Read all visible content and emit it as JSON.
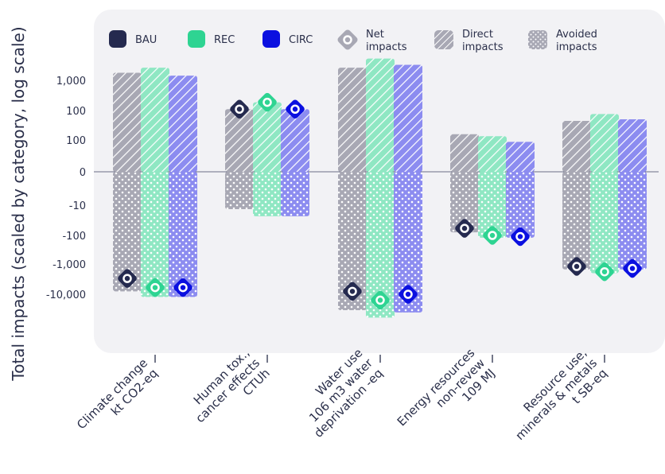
{
  "chart_data": {
    "type": "bar",
    "ylabel": "Total impacts (scaled by category, log scale)",
    "y_scale": "log (scaled by category)",
    "y_ticks": [
      "1,000",
      "100",
      "100",
      "0",
      "-10",
      "-100",
      "-1,000",
      "-10,000"
    ],
    "legend": {
      "series": [
        {
          "name": "BAU",
          "color": "#252a4f"
        },
        {
          "name": "REC",
          "color": "#2ed492"
        },
        {
          "name": "CIRC",
          "color": "#0b10e0"
        }
      ],
      "markers": [
        {
          "name": "Net impacts",
          "lines": [
            "Net",
            "impacts"
          ],
          "icon": "diamond-ring-icon"
        },
        {
          "name": "Direct impacts",
          "lines": [
            "Direct",
            "impacts"
          ],
          "icon": "diagonal-hatch-icon"
        },
        {
          "name": "Avoided impacts",
          "lines": [
            "Avoided",
            "impacts"
          ],
          "icon": "dot-pattern-icon"
        }
      ],
      "placement": "top"
    },
    "categories": [
      {
        "lines": [
          "Climate change",
          "kt CO2-eq"
        ],
        "sub_line": 1
      },
      {
        "lines": [
          "Human tox.,",
          "cancer effects",
          "CTUh"
        ]
      },
      {
        "lines": [
          "Water use",
          "106 m3 water",
          "deprivation -eq"
        ],
        "sup_line": 1
      },
      {
        "lines": [
          "Energy resources",
          "non-revew",
          "109 MJ"
        ],
        "sup_line": 2
      },
      {
        "lines": [
          "Resource use,",
          "minerals & metals",
          "t SB-eq"
        ]
      }
    ],
    "series": [
      {
        "name": "BAU",
        "direct": [
          1800,
          200,
          2500,
          30,
          100
        ],
        "avoided": [
          -8000,
          -15,
          -30000,
          -80,
          -1500
        ],
        "net": [
          -3000,
          200,
          -8000,
          -60,
          -1200
        ]
      },
      {
        "name": "REC",
        "direct": [
          2500,
          300,
          4500,
          25,
          150
        ],
        "avoided": [
          -12000,
          -25,
          -50000,
          -120,
          -2000
        ],
        "net": [
          -6000,
          300,
          -15000,
          -100,
          -1800
        ]
      },
      {
        "name": "CIRC",
        "direct": [
          1500,
          200,
          3000,
          15,
          110
        ],
        "avoided": [
          -12000,
          -25,
          -35000,
          -120,
          -1500
        ],
        "net": [
          -6000,
          200,
          -10000,
          -110,
          -1400
        ]
      }
    ]
  }
}
